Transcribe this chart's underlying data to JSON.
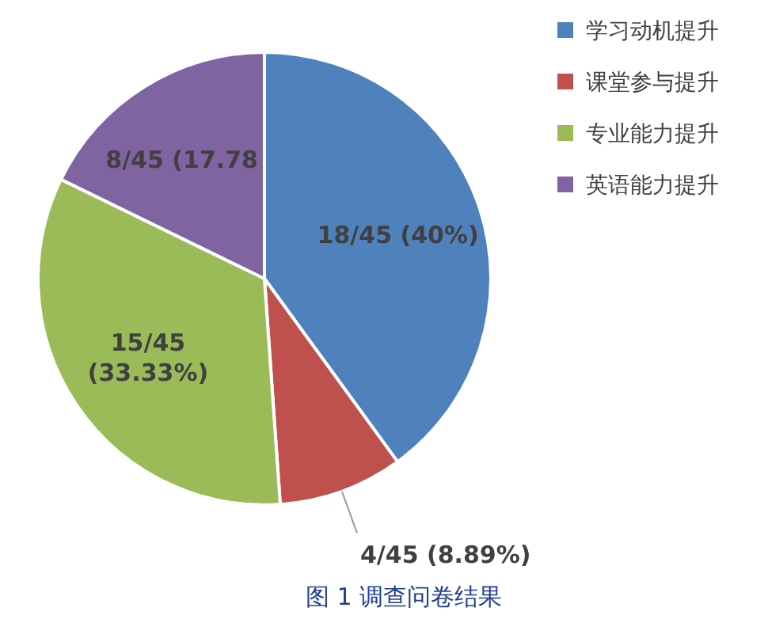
{
  "chart_data": {
    "type": "pie",
    "title": "图 1 调查问卷结果",
    "categories": [
      "学习动机提升",
      "课堂参与提升",
      "专业能力提升",
      "英语能力提升"
    ],
    "values": [
      18,
      4,
      15,
      8
    ],
    "colors": [
      "#4f81bd",
      "#c0504d",
      "#9bbb59",
      "#8064a2"
    ],
    "value_labels": [
      "18/45 (40%)",
      "4/45 (8.89%)",
      "15/45\n(33.33%)",
      "8/45 (17.78"
    ],
    "legend": "top right"
  }
}
